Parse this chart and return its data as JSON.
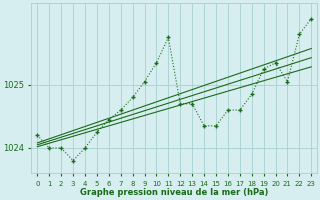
{
  "x": [
    0,
    1,
    2,
    3,
    4,
    5,
    6,
    7,
    8,
    9,
    10,
    11,
    12,
    13,
    14,
    15,
    16,
    17,
    18,
    19,
    20,
    21,
    22,
    23
  ],
  "y_main": [
    1024.2,
    1024.0,
    1024.0,
    1023.8,
    1024.0,
    1024.25,
    1024.45,
    1024.6,
    1024.8,
    1025.05,
    1025.35,
    1025.75,
    1024.7,
    1024.7,
    1024.35,
    1024.35,
    1024.6,
    1024.6,
    1024.85,
    1025.25,
    1025.35,
    1025.05,
    1025.8,
    1026.05
  ],
  "y_trend1": [
    1024.05,
    1024.11,
    1024.17,
    1024.23,
    1024.29,
    1024.35,
    1024.41,
    1024.47,
    1024.53,
    1024.59,
    1024.65,
    1024.71,
    1024.77,
    1024.83,
    1024.89,
    1024.95,
    1025.01,
    1025.07,
    1025.13,
    1025.19,
    1025.25,
    1025.31,
    1025.37,
    1025.43
  ],
  "y_trend2": [
    1024.08,
    1024.145,
    1024.21,
    1024.275,
    1024.34,
    1024.405,
    1024.47,
    1024.535,
    1024.6,
    1024.665,
    1024.73,
    1024.795,
    1024.86,
    1024.925,
    1024.99,
    1025.055,
    1025.12,
    1025.185,
    1025.25,
    1025.315,
    1025.38,
    1025.445,
    1025.51,
    1025.575
  ],
  "y_trend3": [
    1024.02,
    1024.075,
    1024.13,
    1024.185,
    1024.24,
    1024.295,
    1024.35,
    1024.405,
    1024.46,
    1024.515,
    1024.57,
    1024.625,
    1024.68,
    1024.735,
    1024.79,
    1024.845,
    1024.9,
    1024.955,
    1025.01,
    1025.065,
    1025.12,
    1025.175,
    1025.23,
    1025.285
  ],
  "bg_color": "#d6eef0",
  "grid_color": "#a8d0d0",
  "line_color": "#1a6b1a",
  "xlabel": "Graphe pression niveau de la mer (hPa)",
  "ylim": [
    1023.6,
    1026.3
  ],
  "xlim": [
    -0.5,
    23.5
  ],
  "yticks": [
    1024,
    1025
  ],
  "xticks": [
    0,
    1,
    2,
    3,
    4,
    5,
    6,
    7,
    8,
    9,
    10,
    11,
    12,
    13,
    14,
    15,
    16,
    17,
    18,
    19,
    20,
    21,
    22,
    23
  ]
}
